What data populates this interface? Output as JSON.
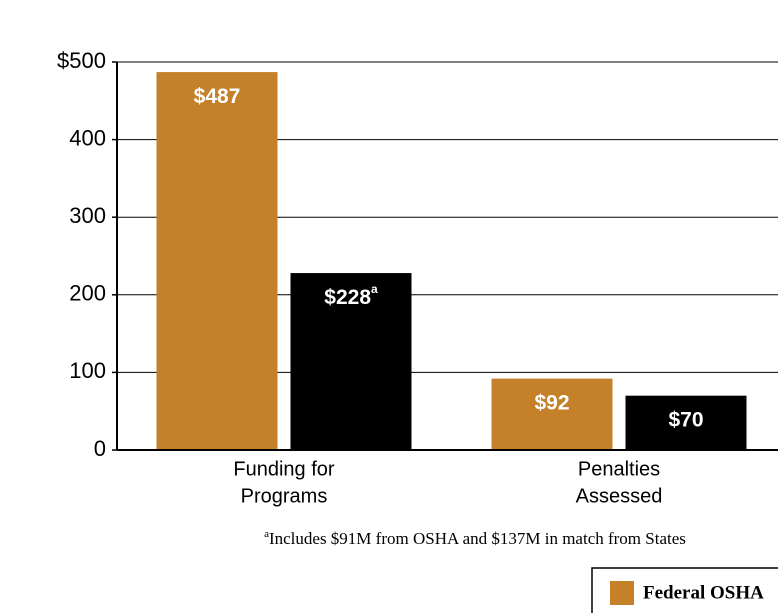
{
  "chart_data": {
    "type": "bar",
    "categories": [
      [
        "Funding for",
        "Programs"
      ],
      [
        "Penalties",
        "Assessed"
      ]
    ],
    "series": [
      {
        "name": "Federal OSHA",
        "color": "#c4812a",
        "values": [
          487,
          92
        ],
        "value_labels": [
          "$487",
          "$92"
        ]
      },
      {
        "color": "#000000",
        "values": [
          228,
          70
        ],
        "value_labels": [
          "$228",
          "$70"
        ],
        "value_label_marks": [
          "a",
          null
        ]
      }
    ],
    "ylim": [
      0,
      500
    ],
    "yticks": [
      0,
      100,
      200,
      300,
      400,
      {
        "value": 500,
        "label": "$500"
      }
    ],
    "grid": true,
    "footnote": {
      "mark": "a",
      "text": "Includes $91M from OSHA and $137M in match from States"
    },
    "legend": "bottom-right"
  }
}
